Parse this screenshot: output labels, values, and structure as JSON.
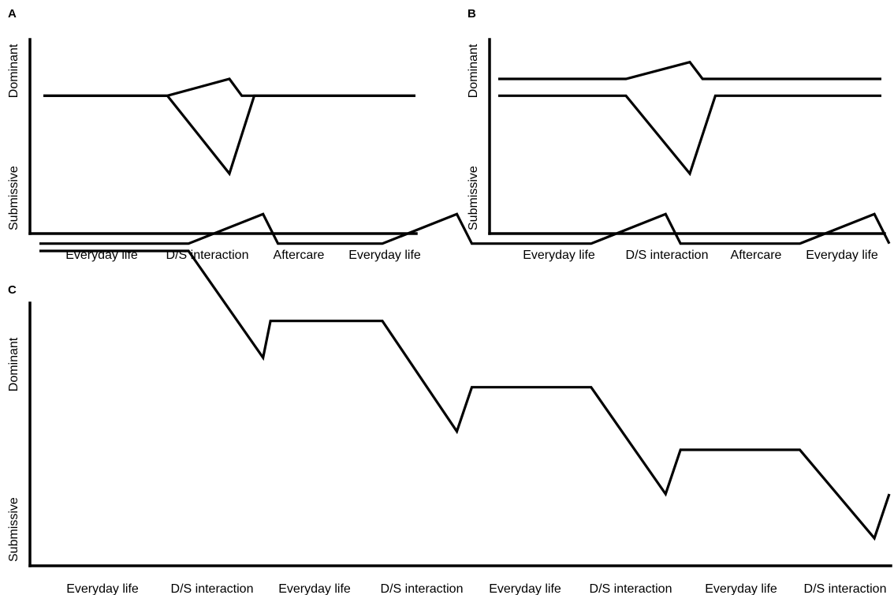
{
  "chart_data": [
    {
      "panel": "A",
      "type": "line",
      "ylabel_top": "Dominant",
      "ylabel_bottom": "Submissive",
      "phase_labels": [
        "Everyday life",
        "D/S interaction",
        "Aftercare",
        "Everyday life"
      ],
      "series": [
        {
          "x": [
            0,
            1,
            1.5,
            1.6,
            3
          ],
          "y": [
            0.52,
            0.52,
            0.6,
            0.52,
            0.52
          ]
        },
        {
          "x": [
            0,
            1,
            1.5,
            1.7,
            3
          ],
          "y": [
            0.52,
            0.52,
            0.15,
            0.52,
            0.52
          ]
        }
      ]
    },
    {
      "panel": "B",
      "type": "line",
      "ylabel_top": "Dominant",
      "ylabel_bottom": "Submissive",
      "phase_labels": [
        "Everyday life",
        "D/S interaction",
        "Aftercare",
        "Everyday life"
      ],
      "series": [
        {
          "x": [
            0,
            1,
            1.5,
            1.6,
            3
          ],
          "y": [
            0.6,
            0.6,
            0.68,
            0.6,
            0.6
          ]
        },
        {
          "x": [
            0,
            1,
            1.5,
            1.7,
            3
          ],
          "y": [
            0.52,
            0.52,
            0.15,
            0.52,
            0.52
          ]
        }
      ]
    },
    {
      "panel": "C",
      "type": "line",
      "ylabel_top": "Dominant",
      "ylabel_bottom": "Submissive",
      "phase_labels": [
        "Everyday life",
        "D/S interaction",
        "Everyday life",
        "D/S interaction",
        "Everyday life",
        "D/S interaction",
        "Everyday life",
        "D/S interaction"
      ],
      "series": [
        {
          "x": [
            0,
            1,
            1.5,
            1.6,
            2.3,
            2.8,
            2.9,
            3.7,
            4.2,
            4.3,
            5.1,
            5.6,
            5.7
          ],
          "y": [
            0.86,
            0.86,
            0.94,
            0.86,
            0.86,
            0.94,
            0.86,
            0.86,
            0.94,
            0.86,
            0.86,
            0.94,
            0.86
          ]
        },
        {
          "x": [
            0,
            1,
            1.5,
            1.55,
            2.3,
            2.8,
            2.9,
            3.7,
            4.2,
            4.3,
            5.1,
            5.6,
            5.7
          ],
          "y": [
            0.84,
            0.84,
            0.55,
            0.65,
            0.65,
            0.35,
            0.47,
            0.47,
            0.18,
            0.3,
            0.3,
            0.06,
            0.18
          ]
        }
      ]
    }
  ]
}
